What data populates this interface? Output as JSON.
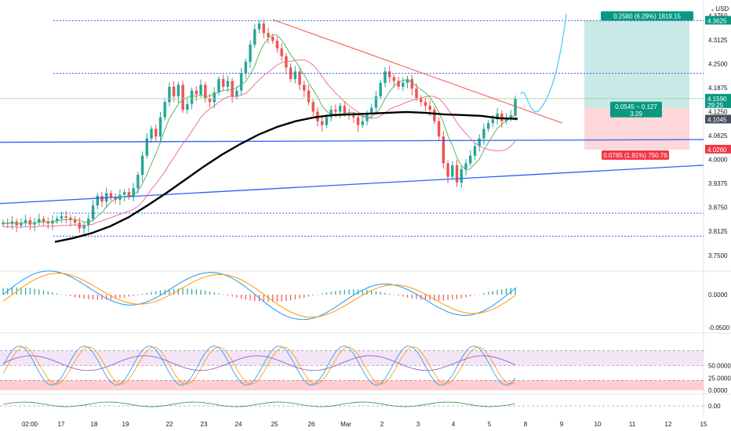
{
  "app": {
    "currency": "USD"
  },
  "colors": {
    "up": "#26a69a",
    "down": "#ef5350",
    "ma_black": "#000000",
    "ma_green": "#4caf50",
    "ma_red": "#f06292",
    "trend_blue": "#2962ff",
    "dotted_blue": "#2962ff",
    "macd_blue": "#2196f3",
    "macd_orange": "#ff9800",
    "profit_bg": "#b2dfdb",
    "loss_bg": "#ffcdd2",
    "profit_tag": "#089981",
    "loss_tag": "#f23645",
    "rsi_band": "#f3e5f5",
    "rsi_red": "#ffcdd2"
  },
  "chart_data": {
    "type": "candlestick",
    "title": "",
    "price_axis": {
      "ticks": [
        "4.3750",
        "4.3125",
        "4.2500",
        "4.1875",
        "4.1250",
        "4.0625",
        "4.0000",
        "3.9375",
        "3.8750",
        "3.8125",
        "3.7500"
      ],
      "ylim": [
        3.75,
        4.4
      ]
    },
    "time_axis": {
      "ticks": [
        "02:00",
        "17",
        "18",
        "19",
        "22",
        "23",
        "24",
        "25",
        "26",
        "Mar",
        "2",
        "3",
        "4",
        "5",
        "8",
        "9",
        "10",
        "11",
        "12",
        "15"
      ]
    },
    "price_tags": [
      {
        "label": "4.3625",
        "value": 4.3625,
        "color": "#089981"
      },
      {
        "label": "4.1590",
        "sub": "29:25",
        "value": 4.159,
        "color": "#089981"
      },
      {
        "label": "4.1045",
        "value": 4.1045,
        "color": "#4a4e5c"
      },
      {
        "label": "4.0260",
        "value": 4.026,
        "color": "#f23645"
      }
    ],
    "candles_close": [
      3.835,
      3.832,
      3.838,
      3.828,
      3.835,
      3.842,
      3.83,
      3.836,
      3.845,
      3.838,
      3.833,
      3.84,
      3.846,
      3.852,
      3.848,
      3.842,
      3.835,
      3.82,
      3.828,
      3.845,
      3.88,
      3.905,
      3.89,
      3.912,
      3.9,
      3.895,
      3.908,
      3.915,
      3.902,
      3.925,
      3.96,
      4.01,
      4.055,
      4.08,
      4.06,
      4.11,
      4.15,
      4.19,
      4.165,
      4.195,
      4.13,
      4.145,
      4.18,
      4.17,
      4.195,
      4.16,
      4.15,
      4.175,
      4.21,
      4.19,
      4.205,
      4.165,
      4.18,
      4.225,
      4.255,
      4.3,
      4.34,
      4.355,
      4.33,
      4.32,
      4.31,
      4.29,
      4.27,
      4.24,
      4.21,
      4.23,
      4.195,
      4.18,
      4.15,
      4.125,
      4.1,
      4.09,
      4.11,
      4.13,
      4.125,
      4.14,
      4.12,
      4.115,
      4.11,
      4.09,
      4.1,
      4.12,
      4.135,
      4.165,
      4.2,
      4.23,
      4.215,
      4.205,
      4.19,
      4.2,
      4.21,
      4.185,
      4.16,
      4.15,
      4.14,
      4.13,
      4.1,
      4.06,
      3.99,
      3.955,
      3.985,
      3.94,
      3.975,
      3.99,
      4.01,
      4.035,
      4.055,
      4.08,
      4.095,
      4.105,
      4.12,
      4.1,
      4.11,
      4.115,
      4.159
    ],
    "indicators": {
      "ma_black_series": [
        3.785,
        3.795,
        3.808,
        3.826,
        3.85,
        3.88,
        3.912,
        3.946,
        3.98,
        4.012,
        4.04,
        4.065,
        4.085,
        4.1,
        4.11,
        4.116,
        4.118,
        4.12,
        4.122,
        4.124,
        4.122,
        4.118,
        4.116,
        4.114,
        4.108,
        4.106
      ],
      "macd_zero_label": "0.0000",
      "macd_low_label": "-0.0500",
      "rsi_labels": [
        "50.0000",
        "25.0000",
        "0.0000"
      ],
      "extra_label": "0.00"
    },
    "position_tool": {
      "target_text": "0.2580 (6.29%) 1819.15",
      "mid_text_line1": "0.0545 ~ 0.127",
      "mid_text_line2": "3.29",
      "stop_text": "0.0785 (1.91%) 750.76"
    },
    "levels": [
      {
        "name": "dotted_top",
        "value": 4.3625
      },
      {
        "name": "dotted_2",
        "value": 4.225
      },
      {
        "name": "dotted_3",
        "value": 3.86
      },
      {
        "name": "dotted_4",
        "value": 3.8
      },
      {
        "name": "support_h",
        "value": 4.045
      }
    ]
  }
}
